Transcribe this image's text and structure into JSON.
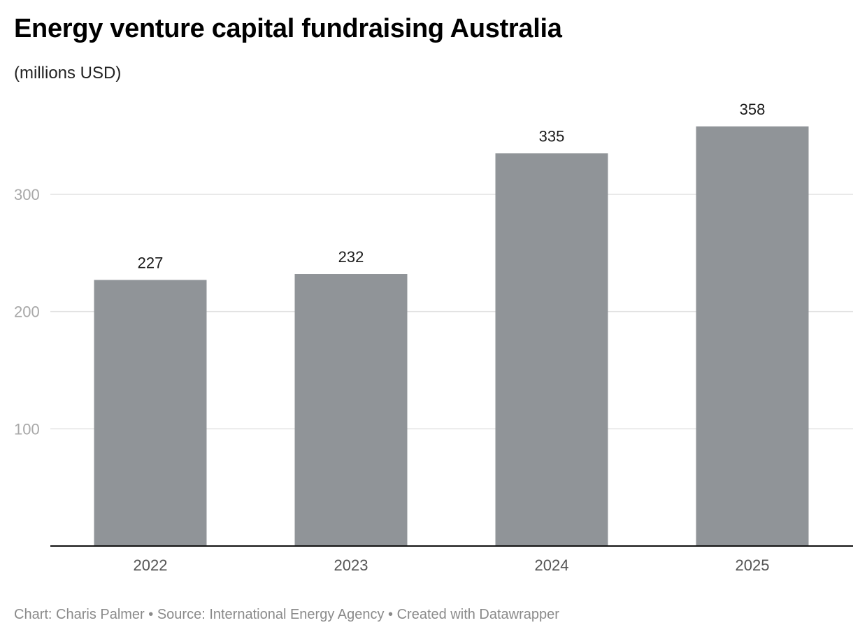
{
  "chart_data": {
    "type": "bar",
    "title": "Energy venture capital fundraising Australia",
    "subtitle": "(millions USD)",
    "xlabel": "",
    "ylabel": "",
    "categories": [
      "2022",
      "2023",
      "2024",
      "2025"
    ],
    "values": [
      227,
      232,
      335,
      358
    ],
    "ylim": [
      0,
      360
    ],
    "yticks": [
      100,
      200,
      300
    ],
    "grid": true,
    "bar_color": "#909498",
    "footer": "Chart: Charis Palmer • Source: International Energy Agency • Created with Datawrapper"
  }
}
